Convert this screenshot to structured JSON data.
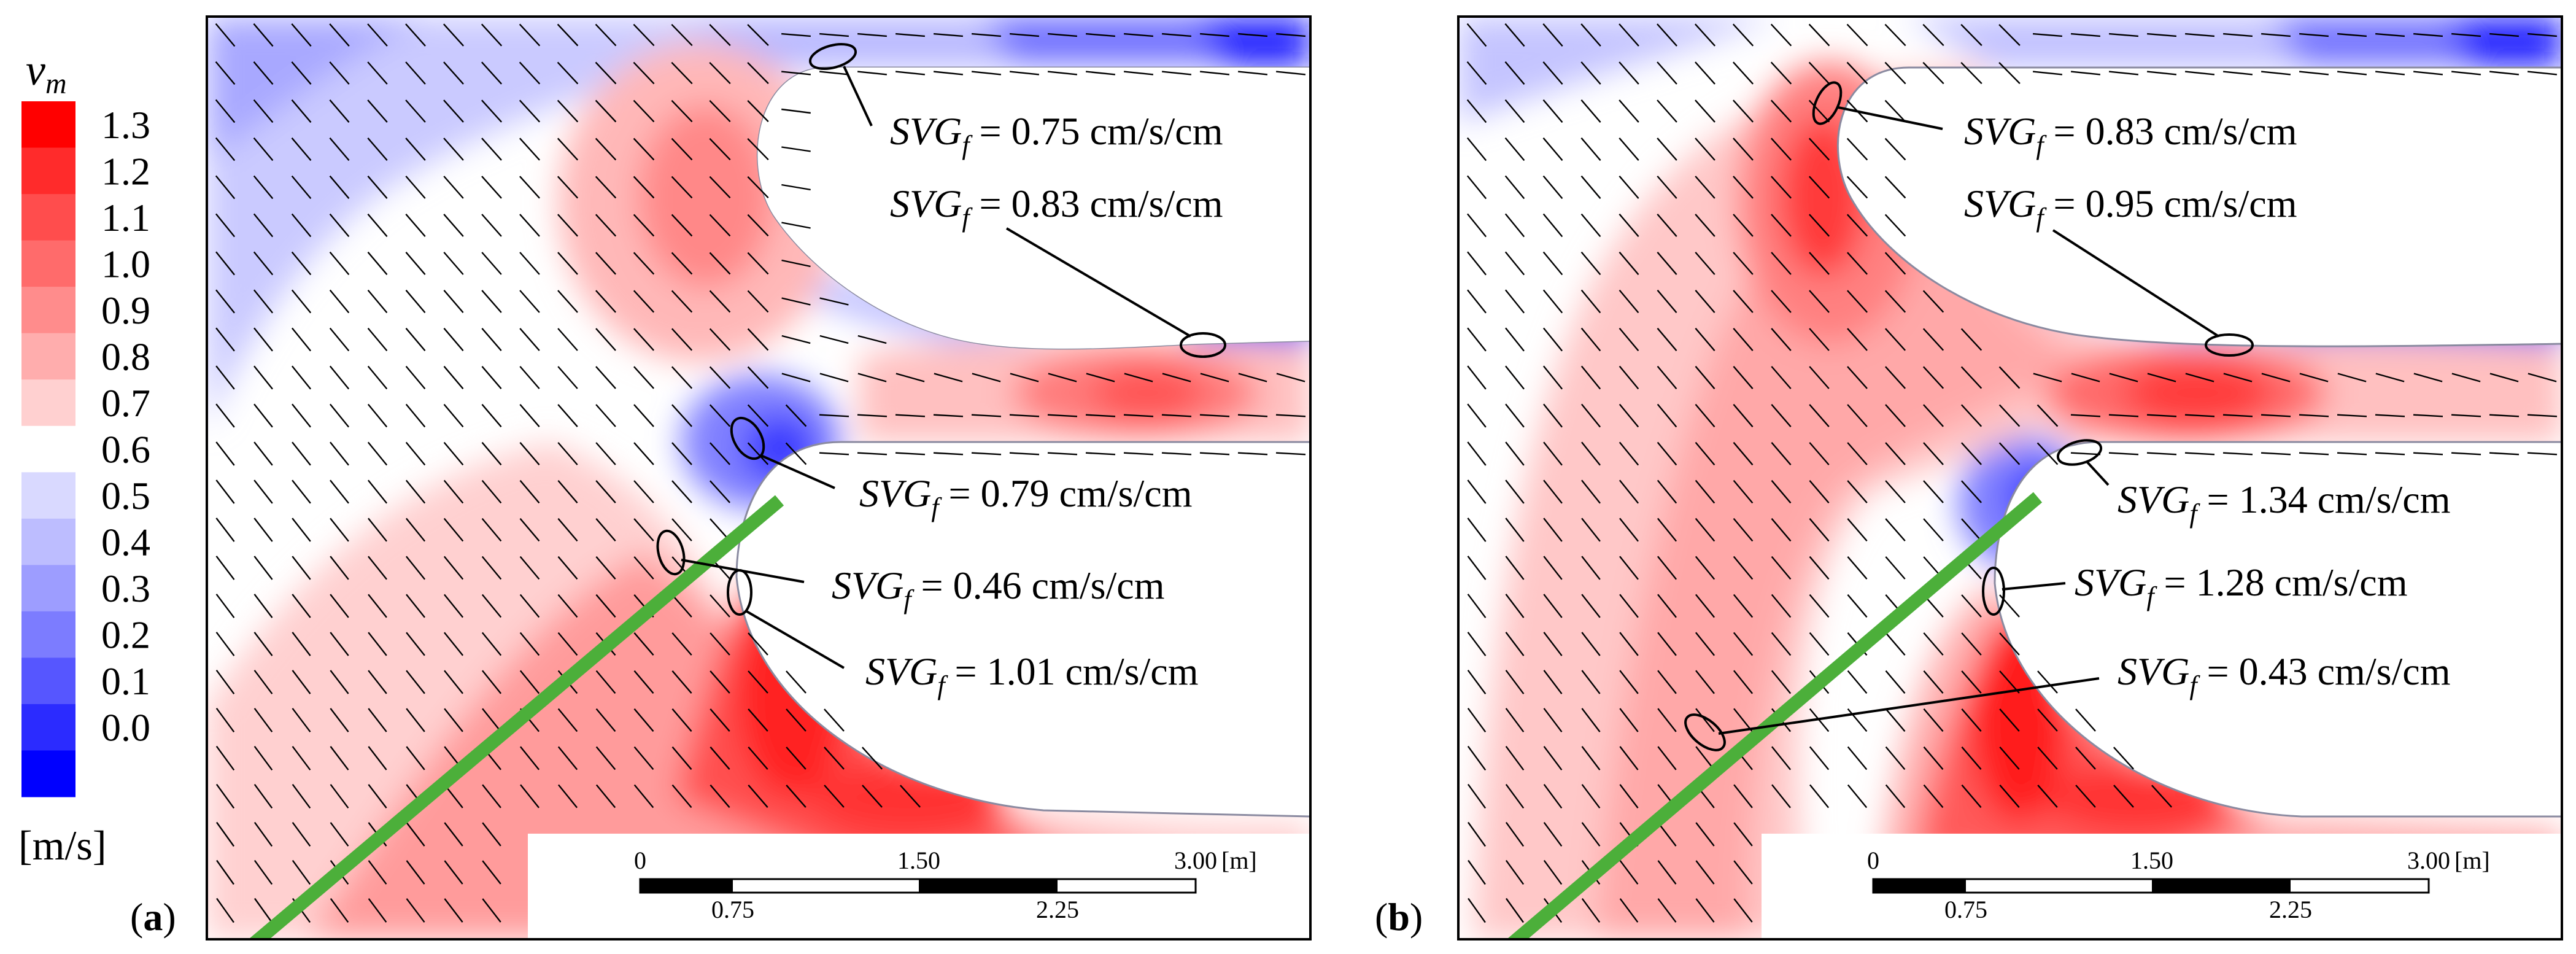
{
  "colorbar": {
    "title": "v",
    "title_sub": "m",
    "unit": "[m/s]",
    "ticks": [
      "1.3",
      "1.2",
      "1.1",
      "1.0",
      "0.9",
      "0.8",
      "0.7",
      "0.6",
      "0.5",
      "0.4",
      "0.3",
      "0.2",
      "0.1",
      "0.0"
    ],
    "colors": [
      "#ff0000",
      "#ff2b2b",
      "#ff4d4d",
      "#ff6b6b",
      "#ff8c8c",
      "#ffadad",
      "#ffd0d0",
      "#ffffff",
      "#d9d9ff",
      "#bdbdff",
      "#9d9dff",
      "#7c7cff",
      "#5656ff",
      "#2b2bff",
      "#0000ff"
    ]
  },
  "panels": [
    {
      "label_open": "(",
      "label_letter": "a",
      "label_close": ")",
      "annotations": [
        {
          "sym": "SVG",
          "sub": "f",
          "text": " = 0.75 cm/s/cm"
        },
        {
          "sym": "SVG",
          "sub": "f",
          "text": " = 0.83 cm/s/cm"
        },
        {
          "sym": "SVG",
          "sub": "f",
          "text": " = 0.79 cm/s/cm"
        },
        {
          "sym": "SVG",
          "sub": "f",
          "text": " = 0.46 cm/s/cm"
        },
        {
          "sym": "SVG",
          "sub": "f",
          "text": " = 1.01 cm/s/cm"
        }
      ],
      "scalebar": {
        "top": [
          "0",
          "1.50",
          "3.00"
        ],
        "unit": "[m]",
        "bottom": [
          "0.75",
          "2.25"
        ]
      }
    },
    {
      "label_open": "(",
      "label_letter": "b",
      "label_close": ")",
      "annotations": [
        {
          "sym": "SVG",
          "sub": "f",
          "text": " = 0.83 cm/s/cm"
        },
        {
          "sym": "SVG",
          "sub": "f",
          "text": " = 0.95 cm/s/cm"
        },
        {
          "sym": "SVG",
          "sub": "f",
          "text": " = 1.34 cm/s/cm"
        },
        {
          "sym": "SVG",
          "sub": "f",
          "text": " = 1.28 cm/s/cm"
        },
        {
          "sym": "SVG",
          "sub": "f",
          "text": " = 0.43 cm/s/cm"
        }
      ],
      "scalebar": {
        "top": [
          "0",
          "1.50",
          "3.00"
        ],
        "unit": "[m]",
        "bottom": [
          "0.75",
          "2.25"
        ]
      }
    }
  ],
  "colors": {
    "inlet_line": "#4caf3a",
    "outline": "#000000"
  }
}
